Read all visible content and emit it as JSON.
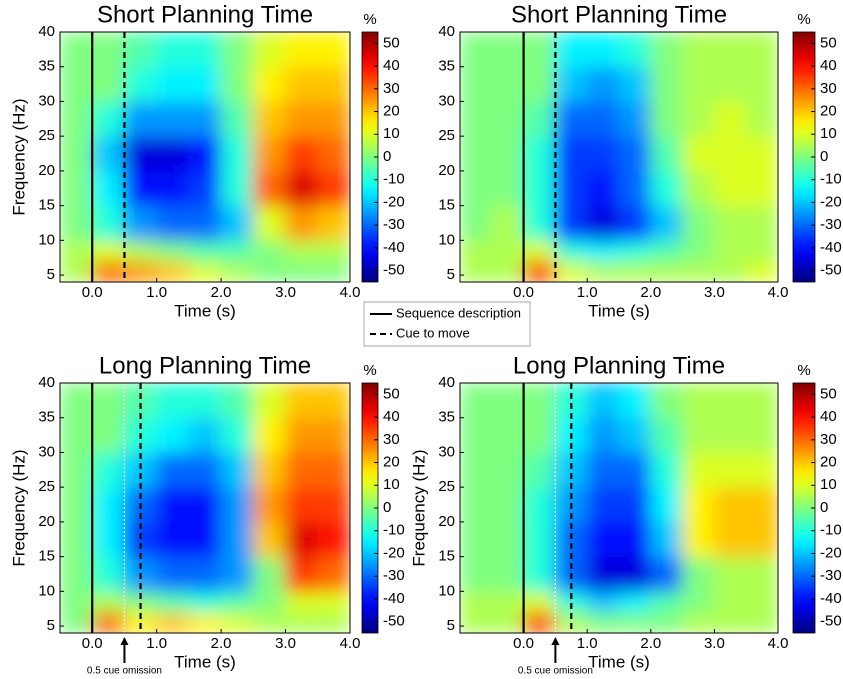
{
  "chart_data": [
    {
      "type": "heatmap",
      "title": "Short Planning Time",
      "xlabel": "Time (s)",
      "ylabel": "Frequency (Hz)",
      "colormap": "jet",
      "x_bins": [
        -0.5,
        0,
        0.5,
        1,
        1.5,
        2,
        2.5,
        3,
        3.5,
        4
      ],
      "y_bins": [
        4,
        7,
        10,
        15,
        20,
        25,
        30,
        35,
        40
      ],
      "values": [
        [
          5,
          30,
          25,
          20,
          10,
          5,
          0,
          0,
          0
        ],
        [
          5,
          10,
          5,
          0,
          -5,
          -5,
          0,
          5,
          5
        ],
        [
          0,
          -10,
          -25,
          -30,
          -30,
          -20,
          10,
          25,
          20
        ],
        [
          0,
          -15,
          -40,
          -40,
          -35,
          -10,
          30,
          45,
          35
        ],
        [
          0,
          -20,
          -45,
          -45,
          -40,
          -10,
          25,
          35,
          30
        ],
        [
          0,
          -10,
          -25,
          -25,
          -25,
          -5,
          20,
          25,
          25
        ],
        [
          0,
          0,
          -10,
          -15,
          -15,
          0,
          15,
          20,
          20
        ],
        [
          0,
          0,
          -5,
          -10,
          -10,
          0,
          10,
          15,
          15
        ]
      ],
      "xlim": [
        -0.5,
        4
      ],
      "ylim": [
        4,
        40
      ],
      "xticks": [
        {
          "value": 0,
          "label": "0.0"
        },
        {
          "value": 1,
          "label": "1.0"
        },
        {
          "value": 2,
          "label": "2.0"
        },
        {
          "value": 3,
          "label": "3.0"
        },
        {
          "value": 4,
          "label": "4.0"
        }
      ],
      "yticks": [
        5,
        10,
        15,
        20,
        25,
        30,
        35,
        40
      ],
      "markers": [
        {
          "x": 0,
          "style": "solid",
          "color": "#000000"
        },
        {
          "x": 0.5,
          "style": "dashed",
          "color": "#000000"
        }
      ],
      "colorbar": {
        "label": "%",
        "lim": [
          -55,
          55
        ],
        "ticks": [
          -50,
          -40,
          -30,
          -20,
          -10,
          0,
          10,
          20,
          30,
          40,
          50
        ]
      }
    },
    {
      "type": "heatmap",
      "title": "Short Planning Time",
      "xlabel": "Time (s)",
      "colormap": "jet",
      "x_bins": [
        -1,
        -0.5,
        0,
        0.5,
        1,
        1.5,
        2,
        2.5,
        3,
        3.5,
        4
      ],
      "y_bins": [
        4,
        7,
        10,
        15,
        20,
        25,
        30,
        35,
        40
      ],
      "values": [
        [
          5,
          5,
          35,
          10,
          5,
          5,
          5,
          5,
          5,
          10
        ],
        [
          5,
          5,
          10,
          -10,
          -15,
          -10,
          -5,
          0,
          5,
          5
        ],
        [
          0,
          5,
          -10,
          -35,
          -45,
          -35,
          -20,
          0,
          5,
          5
        ],
        [
          0,
          0,
          -10,
          -35,
          -40,
          -30,
          -10,
          5,
          10,
          10
        ],
        [
          0,
          0,
          -10,
          -35,
          -35,
          -30,
          -5,
          10,
          10,
          10
        ],
        [
          0,
          0,
          -5,
          -30,
          -30,
          -25,
          0,
          5,
          10,
          5
        ],
        [
          0,
          0,
          0,
          -20,
          -25,
          -20,
          0,
          5,
          5,
          5
        ],
        [
          0,
          0,
          0,
          -15,
          -15,
          -10,
          0,
          5,
          5,
          5
        ]
      ],
      "xlim": [
        -1,
        4
      ],
      "ylim": [
        4,
        40
      ],
      "xticks": [
        {
          "value": 0,
          "label": "0.0"
        },
        {
          "value": 1,
          "label": "1.0"
        },
        {
          "value": 2,
          "label": "2.0"
        },
        {
          "value": 3,
          "label": "3.0"
        },
        {
          "value": 4,
          "label": "4.0"
        }
      ],
      "yticks": [
        5,
        10,
        15,
        20,
        25,
        30,
        35,
        40
      ],
      "markers": [
        {
          "x": 0,
          "style": "solid",
          "color": "#000000"
        },
        {
          "x": 0.5,
          "style": "dashed",
          "color": "#000000"
        }
      ],
      "colorbar": {
        "label": "%",
        "lim": [
          -55,
          55
        ],
        "ticks": [
          -50,
          -40,
          -30,
          -20,
          -10,
          0,
          10,
          20,
          30,
          40,
          50
        ]
      }
    },
    {
      "type": "heatmap",
      "title": "Long Planning Time",
      "xlabel": "Time (s)",
      "ylabel": "Frequency (Hz)",
      "colormap": "jet",
      "x_bins": [
        -0.5,
        0,
        0.5,
        1,
        1.5,
        2,
        2.5,
        3,
        3.5,
        4
      ],
      "y_bins": [
        4,
        7,
        10,
        15,
        20,
        25,
        30,
        35,
        40
      ],
      "values": [
        [
          0,
          30,
          15,
          20,
          15,
          10,
          5,
          5,
          5
        ],
        [
          0,
          5,
          0,
          -5,
          -10,
          -5,
          0,
          10,
          10
        ],
        [
          0,
          -10,
          -25,
          -30,
          -30,
          -25,
          0,
          35,
          30
        ],
        [
          0,
          -15,
          -35,
          -40,
          -40,
          -25,
          20,
          45,
          40
        ],
        [
          0,
          -15,
          -30,
          -40,
          -40,
          -25,
          25,
          35,
          35
        ],
        [
          0,
          -10,
          -20,
          -30,
          -30,
          -20,
          20,
          30,
          30
        ],
        [
          0,
          0,
          -10,
          -15,
          -20,
          -10,
          15,
          25,
          25
        ],
        [
          0,
          0,
          -5,
          -10,
          -10,
          -5,
          10,
          20,
          20
        ]
      ],
      "xlim": [
        -0.5,
        4
      ],
      "ylim": [
        4,
        40
      ],
      "xticks": [
        {
          "value": 0,
          "label": "0.0"
        },
        {
          "value": 1,
          "label": "1.0"
        },
        {
          "value": 2,
          "label": "2.0"
        },
        {
          "value": 3,
          "label": "3.0"
        },
        {
          "value": 4,
          "label": "4.0"
        }
      ],
      "yticks": [
        5,
        10,
        15,
        20,
        25,
        30,
        35,
        40
      ],
      "markers": [
        {
          "x": 0,
          "style": "solid",
          "color": "#000000"
        },
        {
          "x": 0.5,
          "style": "dotted",
          "color": "#ffffff"
        },
        {
          "x": 0.75,
          "style": "dashed",
          "color": "#000000"
        }
      ],
      "annotation": {
        "text": "0.5 cue omission",
        "x": 0.5
      },
      "colorbar": {
        "label": "%",
        "lim": [
          -55,
          55
        ],
        "ticks": [
          -50,
          -40,
          -30,
          -20,
          -10,
          0,
          10,
          20,
          30,
          40,
          50
        ]
      }
    },
    {
      "type": "heatmap",
      "title": "Long Planning Time",
      "xlabel": "Time (s)",
      "ylabel": "Frequency (Hz)",
      "colormap": "jet",
      "x_bins": [
        -1,
        -0.5,
        0,
        0.5,
        1,
        1.5,
        2,
        2.5,
        3,
        3.5,
        4
      ],
      "y_bins": [
        4,
        7,
        10,
        15,
        20,
        25,
        30,
        35,
        40
      ],
      "values": [
        [
          5,
          5,
          35,
          5,
          0,
          0,
          0,
          5,
          5,
          5
        ],
        [
          5,
          5,
          10,
          -10,
          -20,
          -15,
          -5,
          0,
          5,
          5
        ],
        [
          0,
          0,
          -10,
          -30,
          -45,
          -45,
          -30,
          0,
          5,
          5
        ],
        [
          0,
          0,
          -10,
          -30,
          -40,
          -40,
          -20,
          15,
          20,
          20
        ],
        [
          0,
          0,
          -10,
          -25,
          -35,
          -35,
          -15,
          15,
          20,
          20
        ],
        [
          0,
          0,
          -5,
          -20,
          -30,
          -30,
          -10,
          10,
          10,
          10
        ],
        [
          0,
          0,
          0,
          -15,
          -25,
          -20,
          -5,
          5,
          5,
          5
        ],
        [
          0,
          0,
          0,
          -10,
          -20,
          -15,
          0,
          5,
          5,
          5
        ]
      ],
      "xlim": [
        -1,
        4
      ],
      "ylim": [
        4,
        40
      ],
      "xticks": [
        {
          "value": 0,
          "label": "0.0"
        },
        {
          "value": 1,
          "label": "1.0"
        },
        {
          "value": 2,
          "label": "2.0"
        },
        {
          "value": 3,
          "label": "3.0"
        },
        {
          "value": 4,
          "label": "4.0"
        }
      ],
      "yticks": [
        5,
        10,
        15,
        20,
        25,
        30,
        35,
        40
      ],
      "markers": [
        {
          "x": 0,
          "style": "solid",
          "color": "#000000"
        },
        {
          "x": 0.5,
          "style": "dotted",
          "color": "#ffffff"
        },
        {
          "x": 0.75,
          "style": "dashed",
          "color": "#000000"
        }
      ],
      "annotation": {
        "text": "0.5 cue omission",
        "x": 0.5
      },
      "colorbar": {
        "label": "%",
        "lim": [
          -55,
          55
        ],
        "ticks": [
          -50,
          -40,
          -30,
          -20,
          -10,
          0,
          10,
          20,
          30,
          40,
          50
        ]
      }
    }
  ],
  "legend": [
    {
      "label": "Sequence description",
      "style": "solid"
    },
    {
      "label": "Cue to move",
      "style": "dashed"
    }
  ]
}
